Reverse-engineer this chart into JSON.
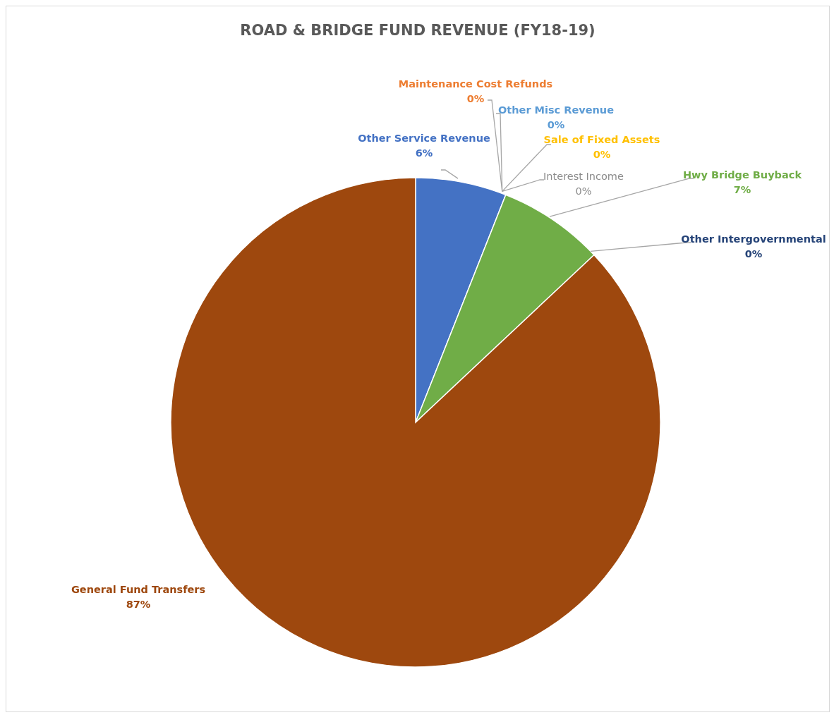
{
  "chart_data": {
    "type": "pie",
    "title": "ROAD & BRIDGE FUND REVENUE (FY18-19)",
    "categories": [
      "Other Service Revenue",
      "Maintenance Cost Refunds",
      "Other Misc Revenue",
      "Sale of Fixed Assets",
      "Interest Income",
      "Hwy Bridge Buyback",
      "Other Intergovernmental",
      "General Fund Transfers"
    ],
    "values": [
      6,
      0,
      0,
      0,
      0,
      7,
      0,
      87
    ],
    "value_labels": [
      "6%",
      "0%",
      "0%",
      "0%",
      "0%",
      "7%",
      "0%",
      "87%"
    ],
    "colors": [
      "#4472c4",
      "#ed7d31",
      "#5b9bd5",
      "#ffc000",
      "#a5a5a5",
      "#70ad47",
      "#264478",
      "#9e480e"
    ]
  }
}
